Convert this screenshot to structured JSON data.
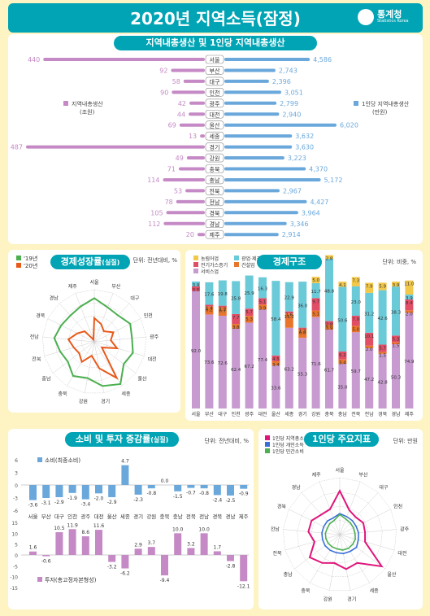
{
  "header": {
    "title": "2020년 지역소득(잠정)",
    "logo_text": "통계청",
    "logo_sub": "Statistics Korea"
  },
  "grdp": {
    "title": "지역내총생산 및 1인당 지역내총생산",
    "left_legend": "지역내총생산\n(조원)",
    "right_legend": "1인당 지역내총생산\n(만원)",
    "left_color": "#c58ac5",
    "right_color": "#6aa8dc"
  },
  "growth": {
    "title": "경제성장률",
    "subtitle": "(실질)",
    "unit": "단위: 전년대비, %",
    "legend": [
      "'19년",
      "'20년"
    ],
    "colors": [
      "#4caf50",
      "#e8591a"
    ]
  },
  "structure": {
    "title": "경제구조",
    "unit": "단위: 비중, %"
  },
  "consumption": {
    "title": "소비 및 투자 증감률",
    "subtitle": "(실질)",
    "unit": "단위: 전년대비, %",
    "top_legend": "소비(최종소비)",
    "bottom_legend": "투자(총고정자본형성)"
  },
  "percap": {
    "title": "1인당 주요지표",
    "unit": "단위: 만원",
    "legend": [
      "1인당 지역총소득",
      "1인당 개인소득",
      "1인당 민간소비"
    ]
  },
  "chart_data": [
    {
      "type": "bar",
      "title": "지역내총생산 및 1인당 지역내총생산",
      "categories": [
        "서울",
        "부산",
        "대구",
        "인천",
        "광주",
        "대전",
        "울산",
        "세종",
        "경기",
        "강원",
        "충북",
        "충남",
        "전북",
        "전남",
        "경북",
        "경남",
        "제주"
      ],
      "series": [
        {
          "name": "지역내총생산(조원)",
          "values": [
            440,
            92,
            58,
            90,
            42,
            44,
            69,
            13,
            487,
            49,
            71,
            114,
            53,
            78,
            105,
            112,
            20
          ]
        },
        {
          "name": "1인당 지역내총생산(만원)",
          "values": [
            4586,
            2743,
            2396,
            3051,
            2799,
            2940,
            6020,
            3632,
            3630,
            3223,
            4370,
            5172,
            2967,
            4427,
            3964,
            3346,
            2914
          ]
        }
      ]
    },
    {
      "type": "radar",
      "title": "경제성장률",
      "categories": [
        "서울",
        "부산",
        "대구",
        "인천",
        "광주",
        "대전",
        "울산",
        "세종",
        "경기",
        "강원",
        "충북",
        "충남",
        "전북",
        "전남",
        "경북",
        "경남",
        "제주"
      ],
      "series": [
        {
          "name": "'19년",
          "values": [
            3.2,
            1.8,
            1.5,
            2.5,
            2.0,
            2.5,
            1.8,
            4.5,
            3.5,
            1.8,
            2.5,
            1.0,
            1.5,
            2.5,
            1.8,
            1.5,
            2.0
          ]
        },
        {
          "name": "'20년",
          "values": [
            -1.0,
            -2.0,
            -3.0,
            -1.5,
            -2.5,
            -1.0,
            -4.0,
            3.0,
            -0.3,
            -3.0,
            -1.0,
            -2.0,
            -1.5,
            -0.5,
            -2.0,
            -3.0,
            -5.5
          ]
        }
      ]
    },
    {
      "type": "bar",
      "stacked": true,
      "title": "경제구조",
      "categories": [
        "서울",
        "부산",
        "대구",
        "인천",
        "광주",
        "대전",
        "울산",
        "세종",
        "경기",
        "강원",
        "충북",
        "충남",
        "전북",
        "전남",
        "경북",
        "경남",
        "제주"
      ],
      "series": [
        {
          "name": "농림어업",
          "values": [
            0,
            0,
            0,
            0,
            0,
            0,
            0,
            0,
            0,
            5.0,
            2.8,
            4.1,
            7.3,
            7.9,
            5.9,
            3.9,
            11.0
          ]
        },
        {
          "name": "광업·제조업",
          "values": [
            3.9,
            17.6,
            19.8,
            25.8,
            25.9,
            16.3,
            58.4,
            22.9,
            36.0,
            11.7,
            48.8,
            50.6,
            23.0,
            31.2,
            42.6,
            38.3,
            3.9
          ]
        },
        {
          "name": "전기가스증기",
          "values": [
            3.5,
            1.4,
            1.2,
            7.7,
            5.7,
            5.1,
            4.5,
            1.6,
            1.2,
            9.7,
            2.8,
            6.2,
            7.9,
            10.1,
            5.7,
            5.3,
            8.4
          ]
        },
        {
          "name": "건설업",
          "values": [
            0,
            6.2,
            6.7,
            3.8,
            5.3,
            3.9,
            3.4,
            11.2,
            6.8,
            5.1,
            3.9,
            3.4,
            5.0,
            2.0,
            1.5,
            1.5,
            2.0
          ]
        },
        {
          "name": "서비스업",
          "values": [
            92.0,
            73.6,
            72.6,
            62.4,
            67.2,
            77.4,
            33.6,
            63.2,
            55.3,
            71.6,
            61.7,
            35.0,
            59.7,
            47.2,
            42.8,
            50.3,
            74.9
          ]
        }
      ]
    },
    {
      "type": "bar",
      "title": "소비(최종소비)",
      "categories": [
        "서울",
        "부산",
        "대구",
        "인천",
        "광주",
        "대전",
        "울산",
        "세종",
        "경기",
        "강원",
        "충북",
        "충남",
        "전북",
        "전남",
        "경북",
        "경남",
        "제주"
      ],
      "values": [
        -3.6,
        -3.1,
        -2.9,
        -1.9,
        -3.4,
        -2.0,
        -2.9,
        4.7,
        -2.3,
        -0.8,
        0.0,
        -1.5,
        -0.7,
        -0.8,
        -2.4,
        -2.5,
        -0.9
      ]
    },
    {
      "type": "bar",
      "title": "투자(총고정자본형성)",
      "categories": [
        "서울",
        "부산",
        "대구",
        "인천",
        "광주",
        "대전",
        "울산",
        "세종",
        "경기",
        "강원",
        "충북",
        "충남",
        "전북",
        "전남",
        "경북",
        "경남",
        "제주"
      ],
      "values": [
        1.6,
        -0.6,
        10.5,
        11.9,
        8.6,
        11.6,
        -3.2,
        -6.2,
        2.9,
        3.7,
        -9.4,
        10.0,
        3.2,
        10.0,
        1.7,
        -2.8,
        -12.1
      ]
    },
    {
      "type": "radar",
      "title": "1인당 주요지표",
      "categories": [
        "서울",
        "부산",
        "대구",
        "인천",
        "광주",
        "대전",
        "울산",
        "세종",
        "경기",
        "강원",
        "충북",
        "충남",
        "전북",
        "전남",
        "경북",
        "경남",
        "제주"
      ],
      "series": [
        {
          "name": "1인당 지역총소득",
          "values": [
            5000,
            3000,
            2700,
            3000,
            2900,
            3000,
            6000,
            3800,
            4000,
            3300,
            3800,
            4300,
            3000,
            3600,
            3600,
            3100,
            3100
          ]
        },
        {
          "name": "1인당 개인소득",
          "values": [
            2400,
            2200,
            2150,
            2100,
            2150,
            2200,
            2400,
            2250,
            2200,
            2100,
            2100,
            2100,
            2050,
            2050,
            2050,
            2100,
            2050
          ]
        },
        {
          "name": "1인당 민간소비",
          "values": [
            2300,
            1900,
            1800,
            1750,
            1750,
            1850,
            1850,
            1850,
            1800,
            1650,
            1650,
            1650,
            1650,
            1650,
            1600,
            1700,
            1750
          ]
        }
      ]
    }
  ]
}
